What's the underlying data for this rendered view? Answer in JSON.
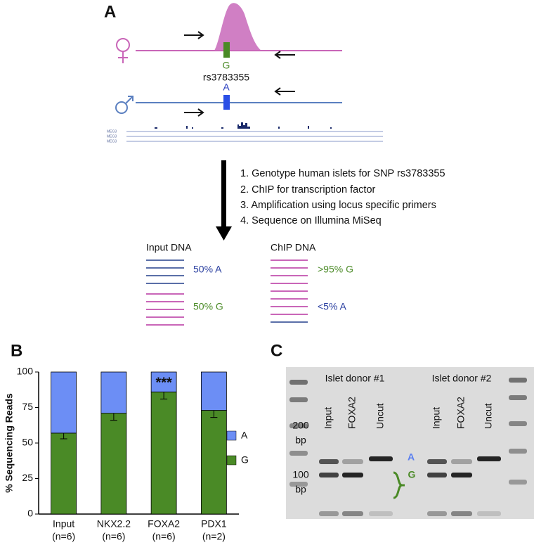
{
  "panel_a": {
    "label": "A",
    "allele_g": "G",
    "snp": "rs3783355",
    "allele_a": "A",
    "gene_labels": [
      "MEG3",
      "MEG3",
      "MEG3"
    ],
    "steps": [
      "1. Genotype human islets for SNP rs3783355",
      "2. ChIP for transcription factor",
      "3. Amplification using locus specific primers",
      "4. Sequence on Illumina MiSeq"
    ],
    "input_title": "Input DNA",
    "input_a": "50% A",
    "input_g": "50% G",
    "chip_title": "ChIP DNA",
    "chip_g": ">95% G",
    "chip_a": "<5% A"
  },
  "chart_data": {
    "type": "bar",
    "label": "B",
    "y_label": "% Sequencing Reads",
    "categories": [
      "Input",
      "NKX2.2",
      "FOXA2",
      "PDX1"
    ],
    "n_labels": [
      "(n=6)",
      "(n=6)",
      "(n=6)",
      "(n=2)"
    ],
    "series": [
      {
        "name": "G",
        "color": "#4a8a26",
        "values": [
          57,
          71,
          86,
          73
        ],
        "errors": [
          4,
          5,
          5,
          5
        ]
      },
      {
        "name": "A",
        "color": "#6c8ef5",
        "values": [
          43,
          29,
          14,
          27
        ]
      }
    ],
    "annotations": [
      null,
      null,
      "***",
      null
    ],
    "ylim": [
      0,
      100
    ],
    "yticks": [
      0,
      25,
      50,
      75,
      100
    ],
    "stacked": true,
    "legend": "right"
  },
  "panel_c": {
    "label": "C",
    "donor1": "Islet donor #1",
    "donor2": "Islet donor #2",
    "lanes": [
      "Input",
      "FOXA2",
      "Uncut",
      "Input",
      "FOXA2",
      "Uncut"
    ],
    "size_200": "200",
    "unit_200": "bp",
    "size_100": "100",
    "unit_100": "bp",
    "band_a": "A",
    "band_g": "G"
  }
}
